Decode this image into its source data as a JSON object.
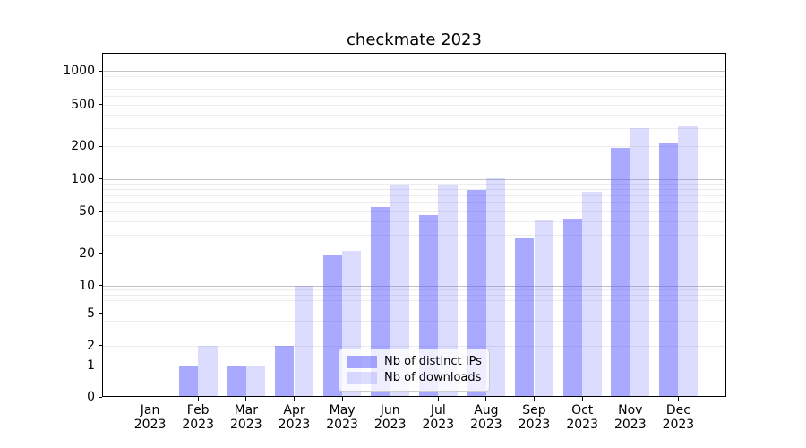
{
  "title": "checkmate 2023",
  "legend": {
    "items": [
      {
        "label": "Nb of distinct IPs"
      },
      {
        "label": "Nb of downloads"
      }
    ]
  },
  "colors": {
    "bar_base": "#5050ff",
    "ips_fill": "rgba(80,80,255,0.49)",
    "downloads_fill": "rgba(80,80,255,0.20)",
    "ips_hex_on_white": "#aaaaf8",
    "downloads_hex_on_white": "#dcdcf8",
    "major_grid": "#c2c2c2",
    "minor_grid": "#ececec",
    "axis": "#000000"
  },
  "chart_data": {
    "type": "bar",
    "title": "checkmate 2023",
    "categories": [
      "Jan 2023",
      "Feb 2023",
      "Mar 2023",
      "Apr 2023",
      "May 2023",
      "Jun 2023",
      "Jul 2023",
      "Aug 2023",
      "Sep 2023",
      "Oct 2023",
      "Nov 2023",
      "Dec 2023"
    ],
    "series": [
      {
        "name": "Nb of distinct IPs",
        "values": [
          0,
          1,
          1,
          2,
          19,
          55,
          46,
          79,
          28,
          43,
          195,
          215
        ]
      },
      {
        "name": "Nb of downloads",
        "values": [
          0,
          2,
          1,
          10,
          21,
          86,
          89,
          102,
          42,
          76,
          298,
          310
        ]
      }
    ],
    "xlabel": "",
    "ylabel": "",
    "yscale": "symlog",
    "yticks": [
      0,
      1,
      2,
      5,
      10,
      20,
      50,
      100,
      200,
      500,
      1000
    ],
    "ylim": [
      0,
      1500
    ],
    "grid": "horizontal, gray major lines at powers of 10, light minor lines at 2-9 per decade",
    "legend_position": "lower center"
  }
}
